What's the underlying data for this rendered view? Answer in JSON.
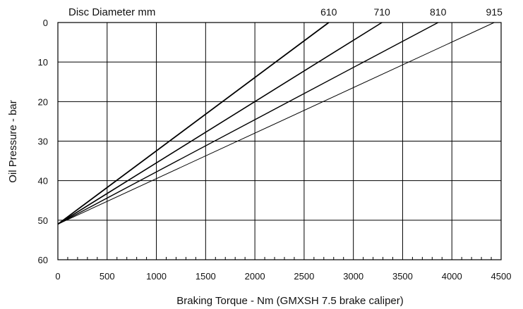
{
  "chart_data": {
    "type": "line",
    "title": "",
    "legend_title": "Disc Diameter mm",
    "xlabel": "Braking Torque - Nm  (GMXSH 7.5 brake caliper)",
    "ylabel": "Oil Pressure - bar",
    "xlim": [
      0,
      4500
    ],
    "ylim": [
      0,
      60
    ],
    "y_inverted": true,
    "grid": true,
    "x_ticks": [
      0,
      500,
      1000,
      1500,
      2000,
      2500,
      3000,
      3500,
      4000,
      4500
    ],
    "y_ticks": [
      0,
      10,
      20,
      30,
      40,
      50,
      60
    ],
    "series": [
      {
        "name": "610",
        "x": [
          0,
          2750
        ],
        "y": [
          51,
          0
        ],
        "stroke_width": 1.8
      },
      {
        "name": "710",
        "x": [
          0,
          3290
        ],
        "y": [
          51,
          0
        ],
        "stroke_width": 1.6
      },
      {
        "name": "810",
        "x": [
          0,
          3860
        ],
        "y": [
          51,
          0
        ],
        "stroke_width": 1.4
      },
      {
        "name": "915",
        "x": [
          0,
          4430
        ],
        "y": [
          51,
          0
        ],
        "stroke_width": 1.0
      }
    ]
  }
}
